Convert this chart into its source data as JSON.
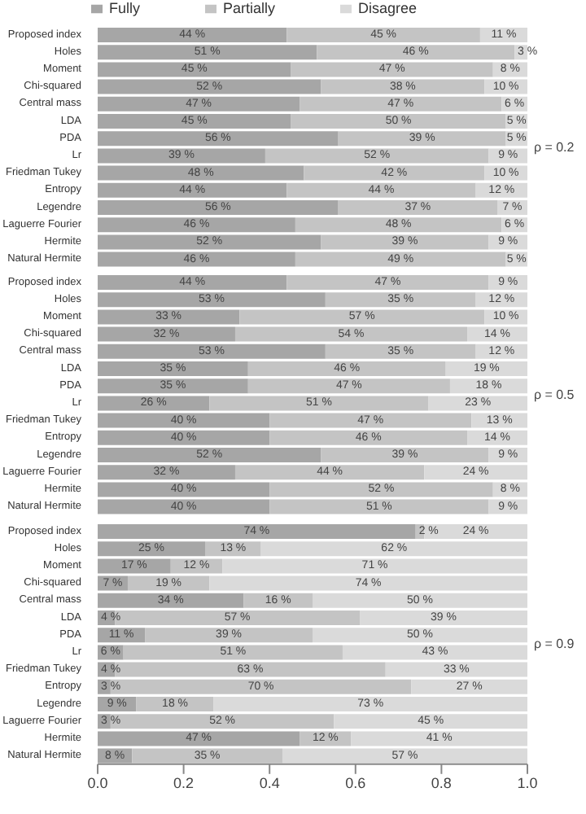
{
  "chart_data": [
    {
      "type": "bar",
      "orientation": "horizontal",
      "stacked": true,
      "title": "ρ = 0.2",
      "legend": "top",
      "tick_labels": "y",
      "xlim": [
        0,
        1
      ],
      "categories": [
        "Proposed index",
        "Holes",
        "Moment",
        "Chi-squared",
        "Central mass",
        "LDA",
        "PDA",
        "Lr",
        "Friedman Tukey",
        "Entropy",
        "Legendre",
        "Laguerre Fourier",
        "Hermite",
        "Natural Hermite"
      ],
      "series": [
        {
          "name": "Fully",
          "color": "#a6a6a6",
          "values": [
            0.44,
            0.51,
            0.45,
            0.52,
            0.47,
            0.45,
            0.56,
            0.39,
            0.48,
            0.44,
            0.56,
            0.46,
            0.52,
            0.46
          ],
          "value_labels": [
            "44 %",
            "51 %",
            "45 %",
            "52 %",
            "47 %",
            "45 %",
            "56 %",
            "39 %",
            "48 %",
            "44 %",
            "56 %",
            "46 %",
            "52 %",
            "46 %"
          ]
        },
        {
          "name": "Partially",
          "color": "#c4c4c4",
          "values": [
            0.45,
            0.46,
            0.47,
            0.38,
            0.47,
            0.5,
            0.39,
            0.52,
            0.42,
            0.44,
            0.37,
            0.48,
            0.39,
            0.49
          ],
          "value_labels": [
            "45 %",
            "46 %",
            "47 %",
            "38 %",
            "47 %",
            "50 %",
            "39 %",
            "52 %",
            "42 %",
            "44 %",
            "37 %",
            "48 %",
            "39 %",
            "49 %"
          ]
        },
        {
          "name": "Disagree",
          "color": "#dadada",
          "values": [
            0.11,
            0.03,
            0.08,
            0.1,
            0.06,
            0.05,
            0.05,
            0.09,
            0.1,
            0.12,
            0.07,
            0.06,
            0.09,
            0.05
          ],
          "value_labels": [
            "11 %",
            "3 %",
            "8 %",
            "10 %",
            "6 %",
            "5 %",
            "5 %",
            "9 %",
            "10 %",
            "12 %",
            "7 %",
            "6 %",
            "9 %",
            "5 %"
          ]
        }
      ]
    },
    {
      "type": "bar",
      "orientation": "horizontal",
      "stacked": true,
      "title": "ρ = 0.5",
      "tick_labels": "y",
      "xlim": [
        0,
        1
      ],
      "categories": [
        "Proposed index",
        "Holes",
        "Moment",
        "Chi-squared",
        "Central mass",
        "LDA",
        "PDA",
        "Lr",
        "Friedman Tukey",
        "Entropy",
        "Legendre",
        "Laguerre Fourier",
        "Hermite",
        "Natural Hermite"
      ],
      "series": [
        {
          "color": "#a6a6a6",
          "values": [
            0.44,
            0.53,
            0.33,
            0.32,
            0.53,
            0.35,
            0.35,
            0.26,
            0.4,
            0.4,
            0.52,
            0.32,
            0.4,
            0.4
          ],
          "value_labels": [
            "44 %",
            "53 %",
            "33 %",
            "32 %",
            "53 %",
            "35 %",
            "35 %",
            "26 %",
            "40 %",
            "40 %",
            "52 %",
            "32 %",
            "40 %",
            "40 %"
          ]
        },
        {
          "color": "#c4c4c4",
          "values": [
            0.47,
            0.35,
            0.57,
            0.54,
            0.35,
            0.46,
            0.47,
            0.51,
            0.47,
            0.46,
            0.39,
            0.44,
            0.52,
            0.51
          ],
          "value_labels": [
            "47 %",
            "35 %",
            "57 %",
            "54 %",
            "35 %",
            "46 %",
            "47 %",
            "51 %",
            "47 %",
            "46 %",
            "39 %",
            "44 %",
            "52 %",
            "51 %"
          ]
        },
        {
          "color": "#dadada",
          "values": [
            0.09,
            0.12,
            0.1,
            0.14,
            0.12,
            0.19,
            0.18,
            0.23,
            0.13,
            0.14,
            0.09,
            0.24,
            0.08,
            0.09
          ],
          "value_labels": [
            "9 %",
            "12 %",
            "10 %",
            "14 %",
            "12 %",
            "19 %",
            "18 %",
            "23 %",
            "13 %",
            "14 %",
            "9 %",
            "24 %",
            "8 %",
            "9 %"
          ]
        }
      ]
    },
    {
      "type": "bar",
      "orientation": "horizontal",
      "stacked": true,
      "title": "ρ = 0.9",
      "xlim": [
        0,
        1
      ],
      "xticks": [
        {
          "value": 0,
          "label": "0.0"
        },
        {
          "value": 0.2,
          "label": "0.2"
        },
        {
          "value": 0.4,
          "label": "0.4"
        },
        {
          "value": 0.6,
          "label": "0.6"
        },
        {
          "value": 0.8,
          "label": "0.8"
        },
        {
          "value": 1,
          "label": "1.0"
        }
      ],
      "categories": [
        "Proposed index",
        "Holes",
        "Moment",
        "Chi-squared",
        "Central mass",
        "LDA",
        "PDA",
        "Lr",
        "Friedman Tukey",
        "Entropy",
        "Legendre",
        "Laguerre Fourier",
        "Hermite",
        "Natural Hermite"
      ],
      "series": [
        {
          "color": "#a6a6a6",
          "values": [
            0.74,
            0.25,
            0.17,
            0.07,
            0.34,
            0.04,
            0.11,
            0.06,
            0.04,
            0.03,
            0.09,
            0.03,
            0.47,
            0.08
          ],
          "value_labels": [
            "74 %",
            "25 %",
            "17 %",
            "7 %",
            "34 %",
            "4 %",
            "11 %",
            "6 %",
            "4 %",
            "3 %",
            "9 %",
            "3 %",
            "47 %",
            "8 %"
          ]
        },
        {
          "color": "#c4c4c4",
          "values": [
            0.02,
            0.13,
            0.12,
            0.19,
            0.16,
            0.57,
            0.39,
            0.51,
            0.63,
            0.7,
            0.18,
            0.52,
            0.12,
            0.35
          ],
          "value_labels": [
            "2 %",
            "13 %",
            "12 %",
            "19 %",
            "16 %",
            "57 %",
            "39 %",
            "51 %",
            "63 %",
            "70 %",
            "18 %",
            "52 %",
            "12 %",
            "35 %"
          ]
        },
        {
          "color": "#dadada",
          "values": [
            0.24,
            0.62,
            0.71,
            0.74,
            0.5,
            0.39,
            0.5,
            0.43,
            0.33,
            0.27,
            0.73,
            0.45,
            0.41,
            0.57
          ],
          "value_labels": [
            "24 %",
            "62 %",
            "71 %",
            "74 %",
            "50 %",
            "39 %",
            "50 %",
            "43 %",
            "33 %",
            "27 %",
            "73 %",
            "45 %",
            "41 %",
            "57 %"
          ]
        }
      ]
    }
  ]
}
